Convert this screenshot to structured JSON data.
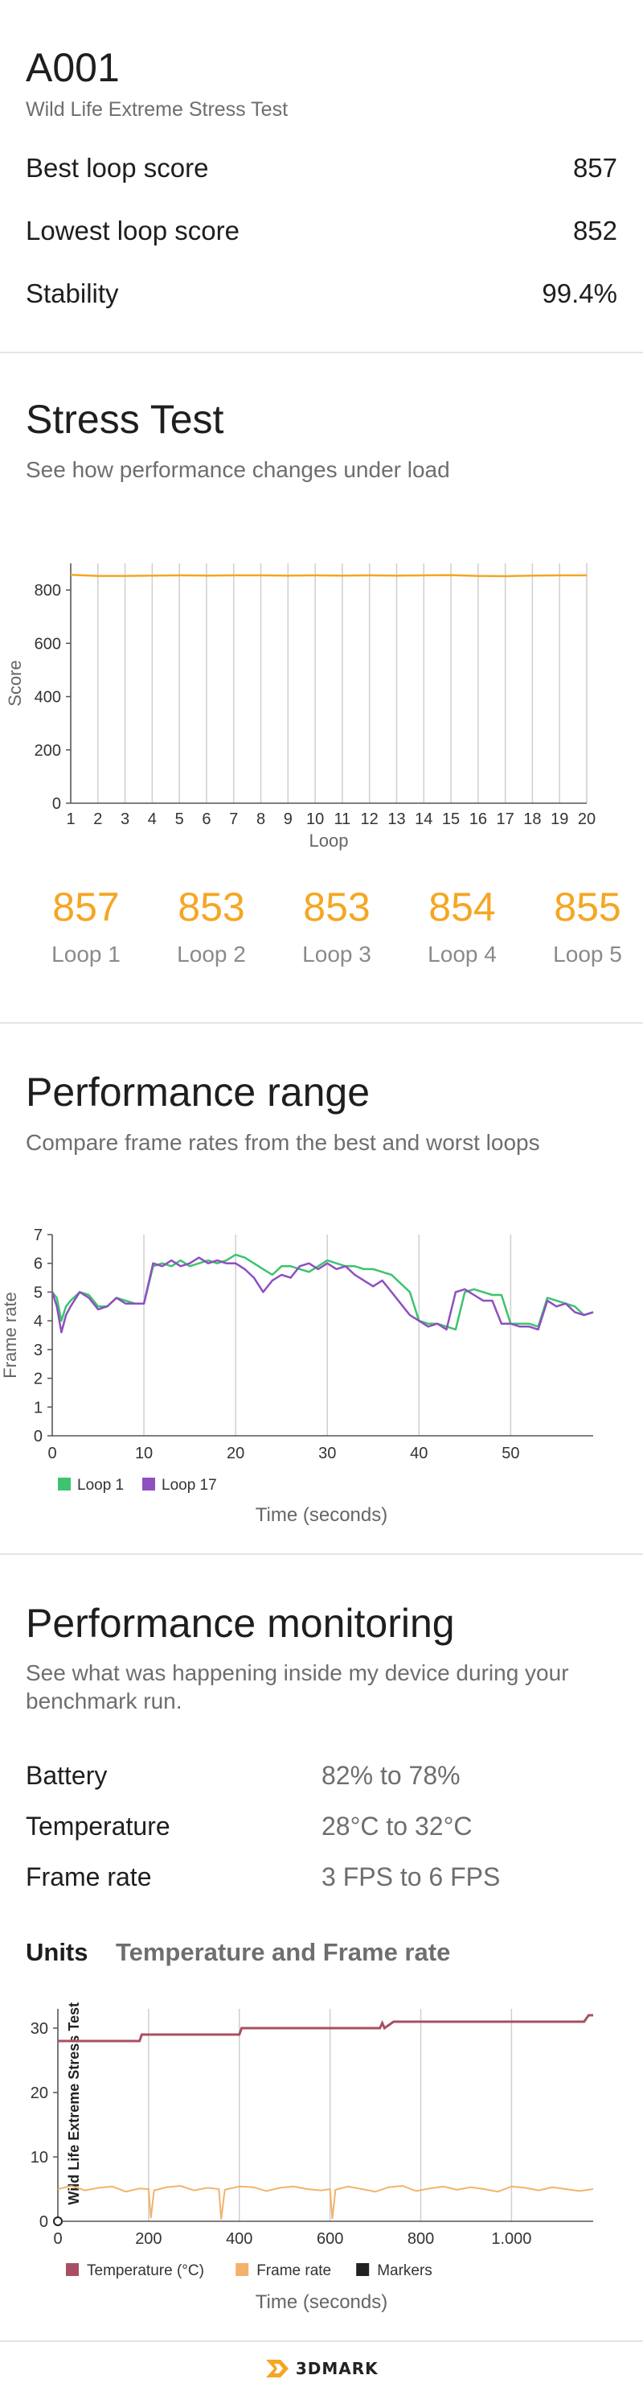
{
  "header": {
    "device": "A001",
    "test_name": "Wild Life Extreme Stress Test",
    "rows": [
      {
        "label": "Best loop score",
        "value": "857"
      },
      {
        "label": "Lowest loop score",
        "value": "852"
      },
      {
        "label": "Stability",
        "value": "99.4%"
      }
    ]
  },
  "stress": {
    "title": "Stress Test",
    "subtitle": "See how performance changes under load",
    "loops": [
      {
        "score": "857",
        "label": "Loop 1"
      },
      {
        "score": "853",
        "label": "Loop 2"
      },
      {
        "score": "853",
        "label": "Loop 3"
      },
      {
        "score": "854",
        "label": "Loop 4"
      },
      {
        "score": "855",
        "label": "Loop 5"
      }
    ]
  },
  "range": {
    "title": "Performance range",
    "subtitle": "Compare frame rates from the best and worst loops"
  },
  "monitoring": {
    "title": "Performance monitoring",
    "subtitle_line1": "See what was happening inside my device during your",
    "subtitle_line2": "benchmark run.",
    "rows": [
      {
        "label": "Battery",
        "value": "82% to 78%"
      },
      {
        "label": "Temperature",
        "value": "28°C to 32°C"
      },
      {
        "label": "Frame rate",
        "value": "3 FPS to 6 FPS"
      }
    ],
    "units_label": "Units",
    "units_value": "Temperature and Frame rate"
  },
  "footer": {
    "brand": "3DMARK"
  },
  "colors": {
    "orange": "#f5a623",
    "green": "#3cc46e",
    "purple": "#8e4fc0",
    "temp": "#a94f63",
    "frame": "#f3b26b",
    "marker": "#222222"
  },
  "chart_data": [
    {
      "type": "line",
      "id": "stress-score",
      "title": "",
      "xlabel": "Loop",
      "ylabel": "Score",
      "x": [
        1,
        2,
        3,
        4,
        5,
        6,
        7,
        8,
        9,
        10,
        11,
        12,
        13,
        14,
        15,
        16,
        17,
        18,
        19,
        20
      ],
      "xlim": [
        1,
        20
      ],
      "ylim": [
        0,
        900
      ],
      "yticks": [
        0,
        200,
        400,
        600,
        800
      ],
      "series": [
        {
          "values": [
            857,
            853,
            853,
            854,
            855,
            854,
            855,
            855,
            854,
            855,
            854,
            855,
            854,
            855,
            856,
            853,
            852,
            854,
            855,
            855
          ]
        }
      ]
    },
    {
      "type": "line",
      "id": "performance-range",
      "title": "",
      "xlabel": "Time (seconds)",
      "ylabel": "Frame rate",
      "xlim": [
        0,
        59
      ],
      "ylim": [
        0,
        7
      ],
      "xticks": [
        0,
        10,
        20,
        30,
        40,
        50
      ],
      "yticks": [
        0,
        1,
        2,
        3,
        4,
        5,
        6,
        7
      ],
      "legend": "bottom-left",
      "series": [
        {
          "name": "Loop 1",
          "points": [
            [
              0,
              5
            ],
            [
              0.5,
              4.8
            ],
            [
              1,
              4.0
            ],
            [
              1.5,
              4.5
            ],
            [
              2,
              4.7
            ],
            [
              3,
              5.0
            ],
            [
              4,
              4.9
            ],
            [
              5,
              4.5
            ],
            [
              6,
              4.5
            ],
            [
              7,
              4.8
            ],
            [
              8,
              4.7
            ],
            [
              9,
              4.6
            ],
            [
              10,
              4.6
            ],
            [
              11,
              5.9
            ],
            [
              12,
              6.0
            ],
            [
              13,
              5.9
            ],
            [
              14,
              6.1
            ],
            [
              15,
              5.9
            ],
            [
              16,
              6.0
            ],
            [
              17,
              6.1
            ],
            [
              18,
              6.0
            ],
            [
              19,
              6.1
            ],
            [
              20,
              6.3
            ],
            [
              21,
              6.2
            ],
            [
              22,
              6.0
            ],
            [
              23,
              5.8
            ],
            [
              24,
              5.6
            ],
            [
              25,
              5.9
            ],
            [
              26,
              5.9
            ],
            [
              27,
              5.8
            ],
            [
              28,
              5.7
            ],
            [
              29,
              5.9
            ],
            [
              30,
              6.1
            ],
            [
              31,
              6.0
            ],
            [
              32,
              5.9
            ],
            [
              33,
              5.9
            ],
            [
              34,
              5.8
            ],
            [
              35,
              5.8
            ],
            [
              36,
              5.7
            ],
            [
              37,
              5.6
            ],
            [
              38,
              5.3
            ],
            [
              39,
              5.0
            ],
            [
              40,
              4.0
            ],
            [
              41,
              3.9
            ],
            [
              42,
              3.9
            ],
            [
              43,
              3.8
            ],
            [
              44,
              3.7
            ],
            [
              45,
              5.0
            ],
            [
              46,
              5.1
            ],
            [
              47,
              5.0
            ],
            [
              48,
              4.9
            ],
            [
              49,
              4.9
            ],
            [
              50,
              3.9
            ],
            [
              51,
              3.9
            ],
            [
              52,
              3.9
            ],
            [
              53,
              3.8
            ],
            [
              54,
              4.8
            ],
            [
              55,
              4.7
            ],
            [
              56,
              4.6
            ],
            [
              57,
              4.5
            ],
            [
              58,
              4.2
            ],
            [
              59,
              4.3
            ]
          ]
        },
        {
          "name": "Loop 17",
          "points": [
            [
              0,
              5
            ],
            [
              0.5,
              4.5
            ],
            [
              1,
              3.6
            ],
            [
              1.5,
              4.2
            ],
            [
              2,
              4.5
            ],
            [
              3,
              5.0
            ],
            [
              4,
              4.8
            ],
            [
              5,
              4.4
            ],
            [
              6,
              4.5
            ],
            [
              7,
              4.8
            ],
            [
              8,
              4.6
            ],
            [
              9,
              4.6
            ],
            [
              10,
              4.6
            ],
            [
              11,
              6.0
            ],
            [
              12,
              5.9
            ],
            [
              13,
              6.1
            ],
            [
              14,
              5.9
            ],
            [
              15,
              6.0
            ],
            [
              16,
              6.2
            ],
            [
              17,
              6.0
            ],
            [
              18,
              6.1
            ],
            [
              19,
              6.0
            ],
            [
              20,
              6.0
            ],
            [
              21,
              5.8
            ],
            [
              22,
              5.5
            ],
            [
              23,
              5.0
            ],
            [
              24,
              5.4
            ],
            [
              25,
              5.6
            ],
            [
              26,
              5.5
            ],
            [
              27,
              5.9
            ],
            [
              28,
              6.0
            ],
            [
              29,
              5.8
            ],
            [
              30,
              6.0
            ],
            [
              31,
              5.8
            ],
            [
              32,
              5.9
            ],
            [
              33,
              5.6
            ],
            [
              34,
              5.4
            ],
            [
              35,
              5.2
            ],
            [
              36,
              5.4
            ],
            [
              37,
              5.0
            ],
            [
              38,
              4.6
            ],
            [
              39,
              4.2
            ],
            [
              40,
              4.0
            ],
            [
              41,
              3.8
            ],
            [
              42,
              3.9
            ],
            [
              43,
              3.7
            ],
            [
              44,
              5.0
            ],
            [
              45,
              5.1
            ],
            [
              46,
              4.9
            ],
            [
              47,
              4.7
            ],
            [
              48,
              4.7
            ],
            [
              49,
              3.9
            ],
            [
              50,
              3.9
            ],
            [
              51,
              3.8
            ],
            [
              52,
              3.8
            ],
            [
              53,
              3.7
            ],
            [
              54,
              4.7
            ],
            [
              55,
              4.5
            ],
            [
              56,
              4.6
            ],
            [
              57,
              4.3
            ],
            [
              58,
              4.2
            ],
            [
              59,
              4.3
            ]
          ]
        }
      ]
    },
    {
      "type": "line",
      "id": "performance-monitoring",
      "title": "Wild Life Extreme Stress Test",
      "xlabel": "Time (seconds)",
      "ylabel": "",
      "xlim": [
        0,
        1180
      ],
      "ylim": [
        0,
        33
      ],
      "xticks": [
        0,
        200,
        400,
        600,
        800,
        1000
      ],
      "xtick_labels": [
        "0",
        "200",
        "400",
        "600",
        "800",
        "1.000"
      ],
      "yticks": [
        0,
        10,
        20,
        30
      ],
      "legend": "bottom-left",
      "series": [
        {
          "name": "Temperature (°C)",
          "points": [
            [
              0,
              28
            ],
            [
              180,
              28
            ],
            [
              185,
              29
            ],
            [
              400,
              29
            ],
            [
              405,
              30
            ],
            [
              710,
              30
            ],
            [
              715,
              30.8
            ],
            [
              720,
              30
            ],
            [
              740,
              31
            ],
            [
              1160,
              31
            ],
            [
              1170,
              32
            ],
            [
              1180,
              32
            ]
          ]
        },
        {
          "name": "Frame rate",
          "points": [
            [
              0,
              5
            ],
            [
              30,
              5.5
            ],
            [
              60,
              4.8
            ],
            [
              90,
              5.2
            ],
            [
              120,
              5.4
            ],
            [
              150,
              4.6
            ],
            [
              180,
              5.1
            ],
            [
              200,
              5
            ],
            [
              205,
              0.5
            ],
            [
              212,
              4.8
            ],
            [
              240,
              5.3
            ],
            [
              270,
              5.5
            ],
            [
              300,
              4.8
            ],
            [
              330,
              5.2
            ],
            [
              355,
              5
            ],
            [
              360,
              0.3
            ],
            [
              368,
              4.9
            ],
            [
              400,
              5.4
            ],
            [
              430,
              5.3
            ],
            [
              460,
              4.7
            ],
            [
              490,
              5.2
            ],
            [
              520,
              5.4
            ],
            [
              550,
              5.0
            ],
            [
              580,
              4.8
            ],
            [
              600,
              5
            ],
            [
              605,
              0.4
            ],
            [
              612,
              4.9
            ],
            [
              640,
              5.4
            ],
            [
              670,
              5.0
            ],
            [
              700,
              4.6
            ],
            [
              730,
              5.3
            ],
            [
              760,
              5.5
            ],
            [
              790,
              4.7
            ],
            [
              820,
              5.1
            ],
            [
              850,
              5.4
            ],
            [
              880,
              4.9
            ],
            [
              910,
              5.3
            ],
            [
              940,
              5.0
            ],
            [
              970,
              4.6
            ],
            [
              1000,
              5.4
            ],
            [
              1030,
              5.2
            ],
            [
              1060,
              4.8
            ],
            [
              1090,
              5.3
            ],
            [
              1120,
              5.0
            ],
            [
              1150,
              4.7
            ],
            [
              1180,
              5.0
            ]
          ]
        },
        {
          "name": "Markers",
          "points": [
            [
              0,
              0
            ]
          ]
        }
      ]
    }
  ]
}
